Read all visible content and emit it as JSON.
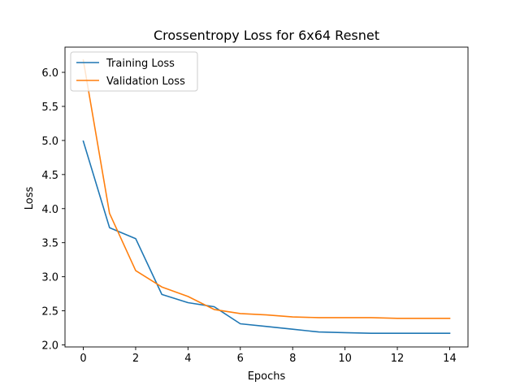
{
  "chart_data": {
    "type": "line",
    "title": "Crossentropy Loss for 6x64 Resnet",
    "xlabel": "Epochs",
    "ylabel": "Loss",
    "xlim": [
      -0.7,
      14.7
    ],
    "ylim": [
      1.97,
      6.37
    ],
    "xticks": [
      0,
      2,
      4,
      6,
      8,
      10,
      12,
      14
    ],
    "xtick_labels": [
      "0",
      "2",
      "4",
      "6",
      "8",
      "10",
      "12",
      "14"
    ],
    "yticks": [
      2.0,
      2.5,
      3.0,
      3.5,
      4.0,
      4.5,
      5.0,
      5.5,
      6.0
    ],
    "ytick_labels": [
      "2.0",
      "2.5",
      "3.0",
      "3.5",
      "4.0",
      "4.5",
      "5.0",
      "5.5",
      "6.0"
    ],
    "grid": false,
    "legend_position": "upper-left",
    "x": [
      0,
      1,
      2,
      3,
      4,
      5,
      6,
      7,
      8,
      9,
      10,
      11,
      12,
      13,
      14
    ],
    "series": [
      {
        "name": "Training Loss",
        "color": "#1f77b4",
        "values": [
          4.99,
          3.72,
          3.56,
          2.74,
          2.62,
          2.56,
          2.31,
          2.27,
          2.23,
          2.19,
          2.18,
          2.17,
          2.17,
          2.17,
          2.17
        ]
      },
      {
        "name": "Validation Loss",
        "color": "#ff7f0e",
        "values": [
          6.18,
          3.93,
          3.09,
          2.85,
          2.71,
          2.52,
          2.46,
          2.44,
          2.41,
          2.4,
          2.4,
          2.4,
          2.39,
          2.39,
          2.39
        ]
      }
    ]
  }
}
